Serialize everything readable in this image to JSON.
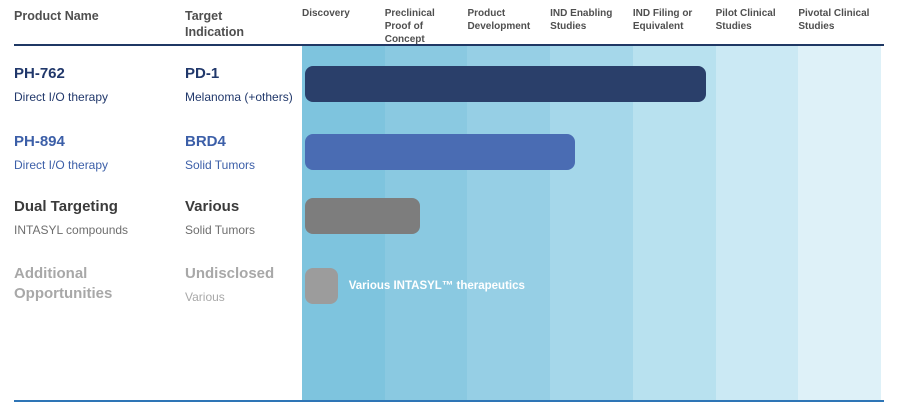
{
  "page": {
    "top_rule_color": "#1f3864",
    "bottom_rule_color": "#2e75b6"
  },
  "headers": {
    "product": "Product Name",
    "target": "Target\nIndication"
  },
  "stages": [
    "Discovery",
    "Preclinical\nProof of\nConcept",
    "Product\nDevelopment",
    "IND Enabling\nStudies",
    "IND Filing or\nEquivalent",
    "Pilot Clinical\nStudies",
    "Pivotal Clinical\nStudies"
  ],
  "stage_colors": [
    "#7ec4de",
    "#8ac9e1",
    "#96cfe5",
    "#a5d7ea",
    "#b8e1ef",
    "#cbe9f4",
    "#def1f8"
  ],
  "rows": [
    {
      "product": "PH-762",
      "product_sub": "Direct I/O therapy",
      "target": "PD-1",
      "target_sub": "Melanoma (+others)",
      "title_color": "#21386b",
      "sub_color": "#21386b",
      "bar_label": ""
    },
    {
      "product": "PH-894",
      "product_sub": "Direct I/O therapy",
      "target": "BRD4",
      "target_sub": "Solid Tumors",
      "title_color": "#3c5fa8",
      "sub_color": "#3c5fa8",
      "bar_label": ""
    },
    {
      "product": "Dual Targeting",
      "product_sub": "INTASYL compounds",
      "target": "Various",
      "target_sub": "Solid Tumors",
      "title_color": "#3b3b3b",
      "sub_color": "#6e6e6e",
      "bar_label": ""
    },
    {
      "product": "Additional Opportunities",
      "product_sub": "",
      "target": "Undisclosed",
      "target_sub": "Various",
      "title_color": "#a8a8a8",
      "sub_color": "#a8a8a8",
      "bar_label": "Various INTASYL™ therapeutics"
    }
  ],
  "chart_data": {
    "type": "bar",
    "orientation": "horizontal",
    "title": "",
    "xlabel": "",
    "ylabel": "",
    "stage_axis": [
      "Discovery",
      "Preclinical Proof of Concept",
      "Product Development",
      "IND Enabling Studies",
      "IND Filing or Equivalent",
      "Pilot Clinical Studies",
      "Pivotal Clinical Studies"
    ],
    "categories": [
      "PH-762 (PD-1, Melanoma (+others))",
      "PH-894 (BRD4, Solid Tumors)",
      "Dual Targeting (Various, Solid Tumors)",
      "Additional Opportunities (Undisclosed, Various)"
    ],
    "values": [
      4.9,
      3.3,
      1.4,
      0.4
    ],
    "value_unit": "pipeline stages reached (of 7)",
    "xlim": [
      0,
      7
    ],
    "bar_colors": [
      "#2a3f6a",
      "#4a6cb3",
      "#7d7d7d",
      "#9c9c9c"
    ],
    "annotations": [
      "Various INTASYL™ therapeutics"
    ],
    "legend": "none",
    "grid": "stage-band background, stepped blue shades light to right"
  }
}
